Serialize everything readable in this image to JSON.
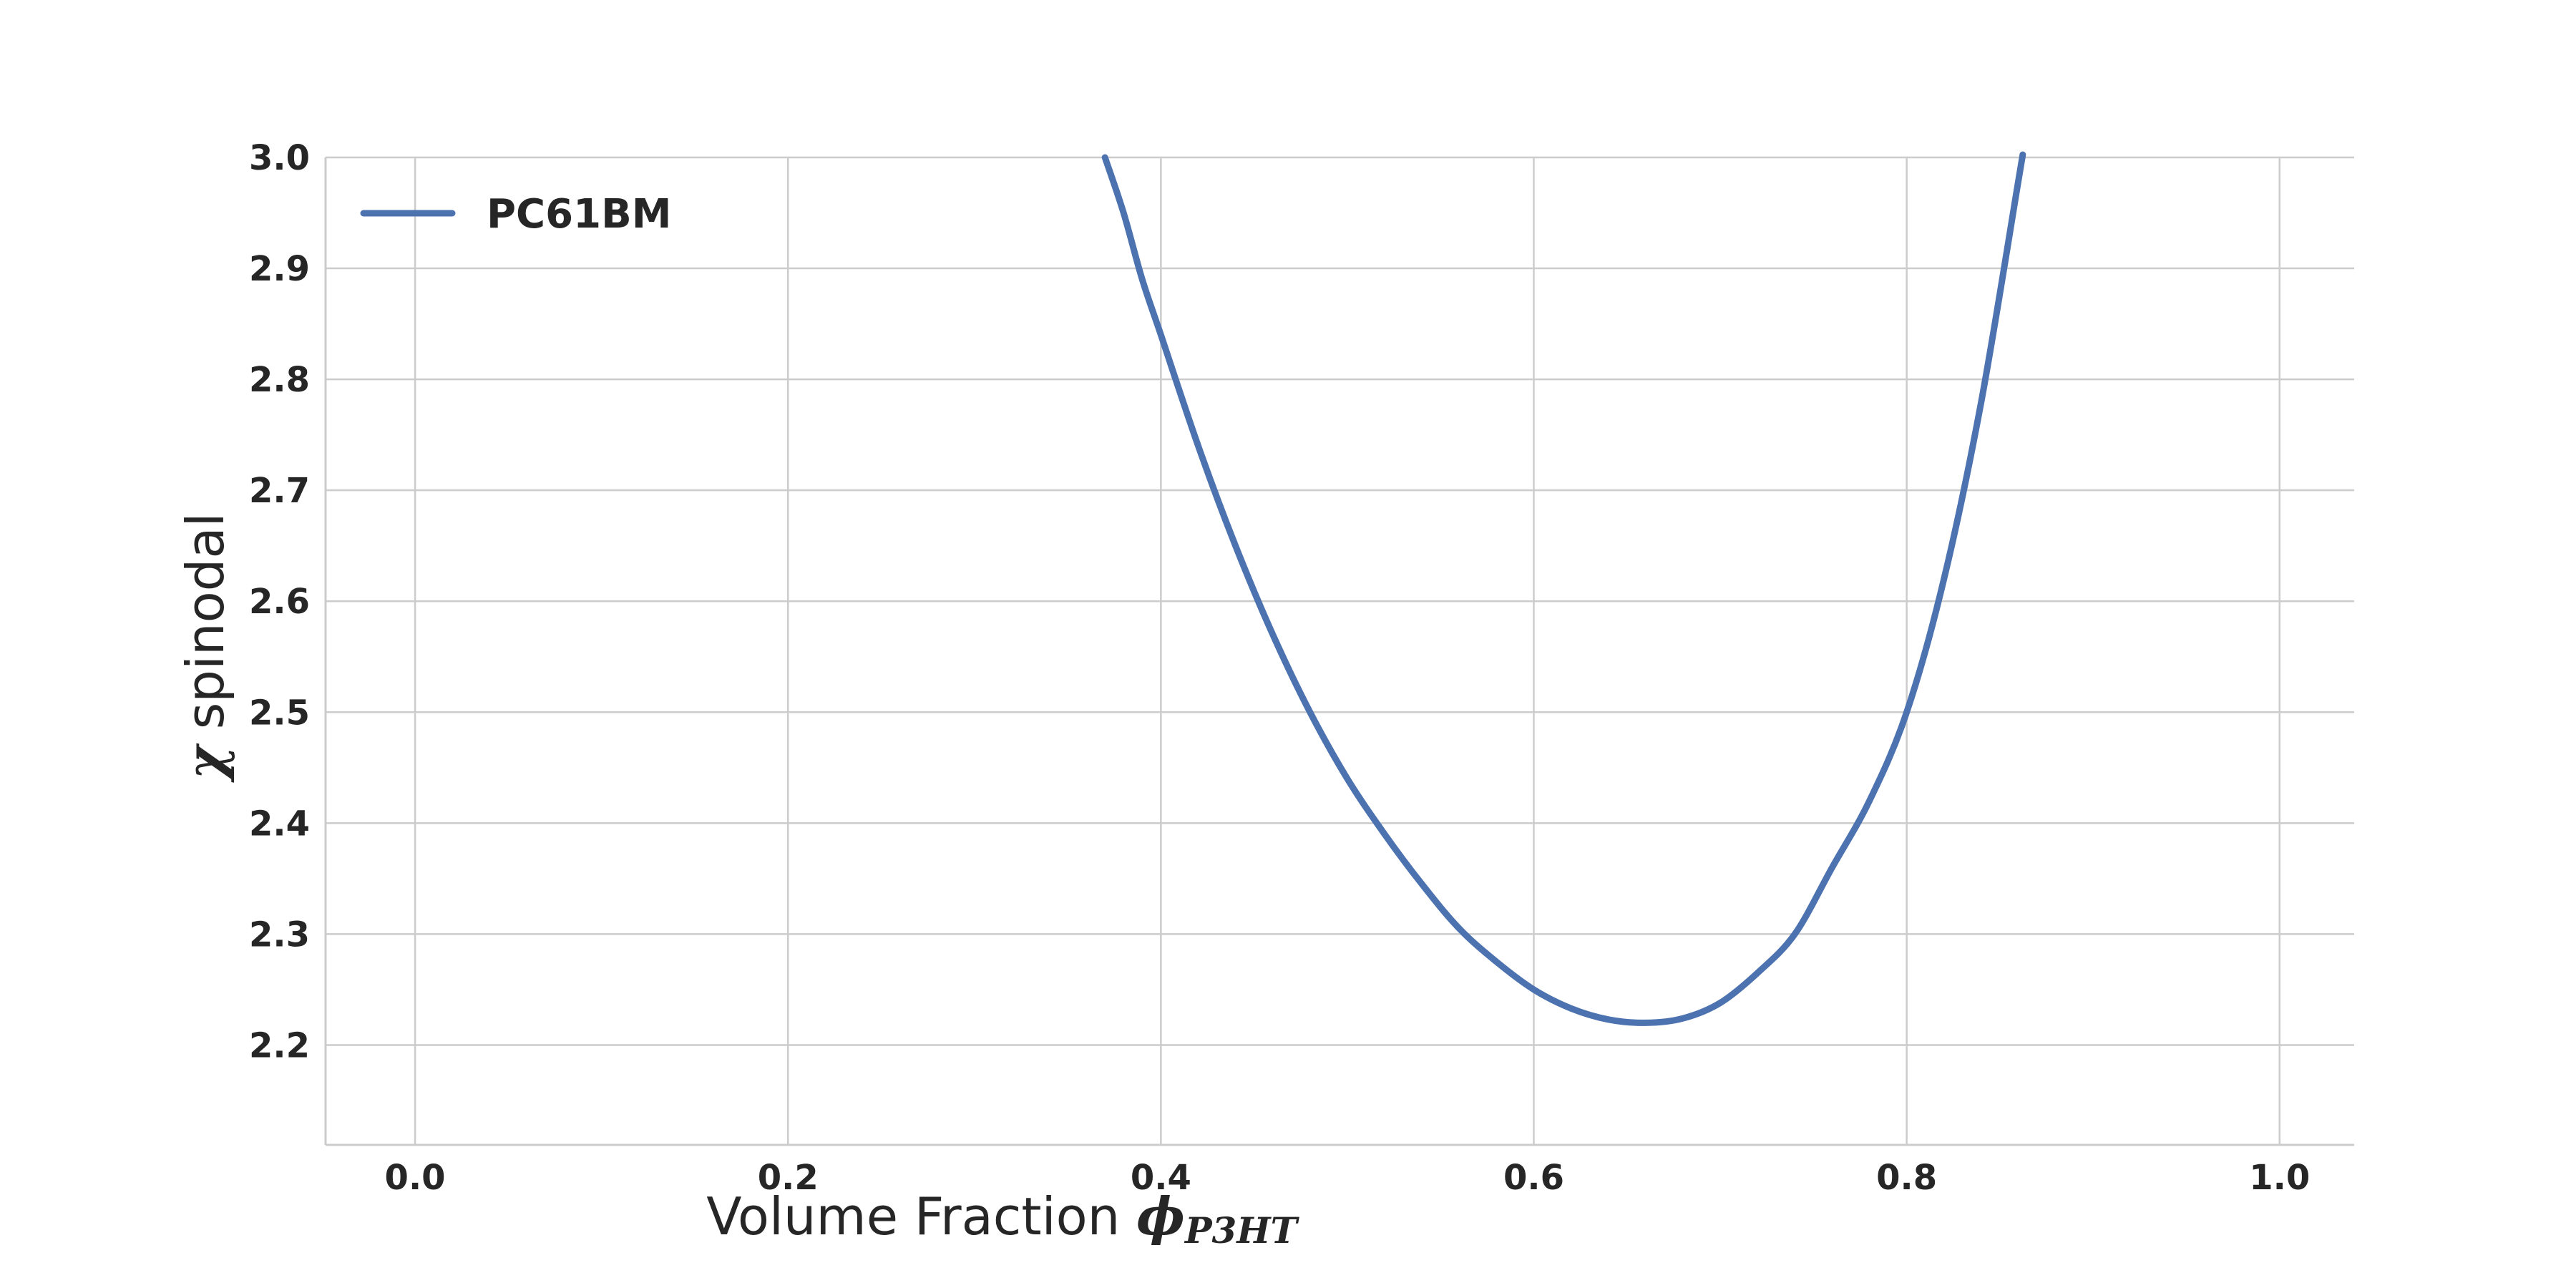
{
  "chart_data": {
    "type": "line",
    "title": "",
    "xlabel": {
      "text": "Volume Fraction ",
      "symbol": "ϕ",
      "subscript": "P3HT"
    },
    "ylabel": {
      "symbol": "χ",
      "text": " spinodal"
    },
    "xlim": [
      -0.048,
      1.04
    ],
    "ylim": [
      2.11,
      3.0
    ],
    "x_ticks": [
      0.0,
      0.2,
      0.4,
      0.6,
      0.8,
      1.0
    ],
    "x_tick_labels": [
      "0.0",
      "0.2",
      "0.4",
      "0.6",
      "0.8",
      "1.0"
    ],
    "y_ticks": [
      2.2,
      2.3,
      2.4,
      2.5,
      2.6,
      2.7,
      2.8,
      2.9,
      3.0
    ],
    "y_tick_labels": [
      "2.2",
      "2.3",
      "2.4",
      "2.5",
      "2.6",
      "2.7",
      "2.8",
      "2.9",
      "3.0"
    ],
    "grid": true,
    "legend_position": "top-left",
    "series": [
      {
        "name": "PC61BM",
        "color": "#4c72b0",
        "x": [
          0.37,
          0.38,
          0.39,
          0.4,
          0.42,
          0.44,
          0.46,
          0.48,
          0.5,
          0.52,
          0.54,
          0.56,
          0.58,
          0.6,
          0.62,
          0.64,
          0.66,
          0.68,
          0.7,
          0.72,
          0.74,
          0.76,
          0.78,
          0.8,
          0.82,
          0.84,
          0.86,
          0.862
        ],
        "y": [
          3.0,
          2.95,
          2.89,
          2.84,
          2.74,
          2.65,
          2.57,
          2.5,
          2.44,
          2.39,
          2.345,
          2.305,
          2.275,
          2.25,
          2.233,
          2.223,
          2.22,
          2.224,
          2.238,
          2.265,
          2.3,
          2.36,
          2.42,
          2.5,
          2.62,
          2.78,
          2.98,
          3.0
        ]
      }
    ]
  }
}
